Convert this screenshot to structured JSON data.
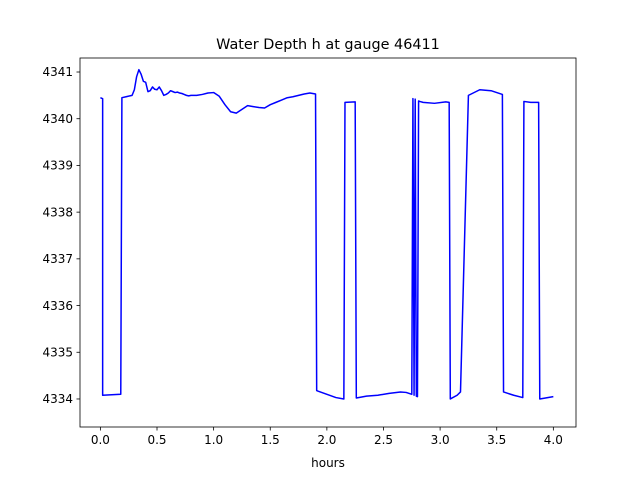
{
  "chart_data": {
    "type": "line",
    "title": "Water Depth h at gauge 46411",
    "xlabel": "hours",
    "ylabel": "",
    "xlim": [
      -0.18,
      4.2
    ],
    "ylim": [
      4333.4,
      4341.3
    ],
    "xticks": [
      0.0,
      0.5,
      1.0,
      1.5,
      2.0,
      2.5,
      3.0,
      3.5,
      4.0
    ],
    "xtick_labels": [
      "0.0",
      "0.5",
      "1.0",
      "1.5",
      "2.0",
      "2.5",
      "3.0",
      "3.5",
      "4.0"
    ],
    "yticks": [
      4334,
      4335,
      4336,
      4337,
      4338,
      4339,
      4340,
      4341
    ],
    "ytick_labels": [
      "4334",
      "4335",
      "4336",
      "4337",
      "4338",
      "4339",
      "4340",
      "4341"
    ],
    "grid": false,
    "series": [
      {
        "color": "#0000ff",
        "x": [
          0.0,
          0.02,
          0.02,
          0.18,
          0.19,
          0.28,
          0.3,
          0.32,
          0.34,
          0.36,
          0.38,
          0.4,
          0.42,
          0.44,
          0.46,
          0.48,
          0.5,
          0.52,
          0.54,
          0.56,
          0.58,
          0.6,
          0.62,
          0.64,
          0.66,
          0.68,
          0.7,
          0.72,
          0.74,
          0.76,
          0.78,
          0.8,
          0.85,
          0.9,
          0.95,
          1.0,
          1.05,
          1.1,
          1.15,
          1.2,
          1.25,
          1.3,
          1.35,
          1.4,
          1.45,
          1.5,
          1.55,
          1.6,
          1.65,
          1.7,
          1.75,
          1.8,
          1.85,
          1.9,
          1.91,
          1.92,
          2.0,
          2.08,
          2.15,
          2.16,
          2.25,
          2.26,
          2.35,
          2.45,
          2.55,
          2.65,
          2.7,
          2.75,
          2.76,
          2.77,
          2.78,
          2.79,
          2.8,
          2.81,
          2.82,
          2.85,
          2.95,
          3.05,
          3.08,
          3.09,
          3.15,
          3.18,
          3.25,
          3.35,
          3.45,
          3.55,
          3.56,
          3.65,
          3.73,
          3.74,
          3.8,
          3.87,
          3.88,
          4.0
        ],
        "y": [
          4340.45,
          4340.43,
          4334.08,
          4334.1,
          4340.45,
          4340.5,
          4340.62,
          4340.9,
          4341.05,
          4340.95,
          4340.8,
          4340.78,
          4340.58,
          4340.6,
          4340.68,
          4340.63,
          4340.62,
          4340.68,
          4340.6,
          4340.5,
          4340.52,
          4340.55,
          4340.6,
          4340.58,
          4340.56,
          4340.57,
          4340.55,
          4340.54,
          4340.52,
          4340.5,
          4340.49,
          4340.5,
          4340.5,
          4340.52,
          4340.55,
          4340.56,
          4340.48,
          4340.3,
          4340.15,
          4340.12,
          4340.2,
          4340.28,
          4340.26,
          4340.24,
          4340.23,
          4340.3,
          4340.35,
          4340.4,
          4340.45,
          4340.47,
          4340.5,
          4340.53,
          4340.55,
          4340.53,
          4334.18,
          4334.17,
          4334.1,
          4334.03,
          4334.0,
          4340.35,
          4340.36,
          4334.02,
          4334.06,
          4334.08,
          4334.12,
          4334.15,
          4334.14,
          4334.1,
          4340.43,
          4334.08,
          4340.42,
          4334.06,
          4334.05,
          4340.38,
          4340.37,
          4340.35,
          4340.33,
          4340.36,
          4340.35,
          4334.0,
          4334.08,
          4334.15,
          4340.5,
          4340.62,
          4340.6,
          4340.52,
          4334.15,
          4334.08,
          4334.03,
          4340.37,
          4340.35,
          4340.35,
          4334.0,
          4334.05
        ]
      }
    ]
  }
}
